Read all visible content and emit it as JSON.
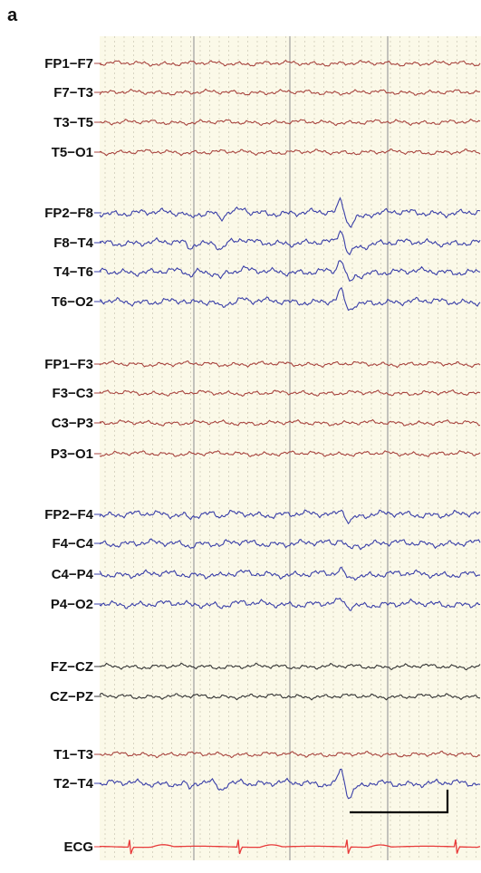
{
  "figure": {
    "panel_label": "a"
  },
  "colors": {
    "background": "#fbf9e8",
    "major_grid": "#9e9e9e",
    "minor_grid": "#c9c7b2",
    "red_traces": "#a8453f",
    "blue_traces": "#3a3fa8",
    "black_traces": "#333333",
    "ecg_trace": "#e83a3a",
    "scale_bar": "#000000"
  },
  "channels": [
    {
      "label": "FP1−F7",
      "color": "red"
    },
    {
      "label": "F7−T3",
      "color": "red"
    },
    {
      "label": "T3−T5",
      "color": "red"
    },
    {
      "label": "T5−O1",
      "color": "red"
    },
    {
      "label": "FP2−F8",
      "color": "blue",
      "spike": 1.0
    },
    {
      "label": "F8−T4",
      "color": "blue",
      "spike": 1.0
    },
    {
      "label": "T4−T6",
      "color": "blue",
      "spike": 0.9
    },
    {
      "label": "T6−O2",
      "color": "blue",
      "spike": 0.8
    },
    {
      "label": "FP1−F3",
      "color": "red"
    },
    {
      "label": "F3−C3",
      "color": "red"
    },
    {
      "label": "C3−P3",
      "color": "red"
    },
    {
      "label": "P3−O1",
      "color": "red"
    },
    {
      "label": "FP2−F4",
      "color": "blue",
      "spike": 0.5
    },
    {
      "label": "F4−C4",
      "color": "blue",
      "spike": 0.4
    },
    {
      "label": "C4−P4",
      "color": "blue",
      "spike": 0.3
    },
    {
      "label": "P4−O2",
      "color": "blue",
      "spike": 0.3
    },
    {
      "label": "FZ−CZ",
      "color": "black"
    },
    {
      "label": "CZ−PZ",
      "color": "black"
    },
    {
      "label": "T1−T3",
      "color": "red"
    },
    {
      "label": "T2−T4",
      "color": "blue",
      "spike": 1.2
    },
    {
      "label": "ECG",
      "color": "ecg"
    }
  ],
  "scale_bar": {
    "present": true
  }
}
